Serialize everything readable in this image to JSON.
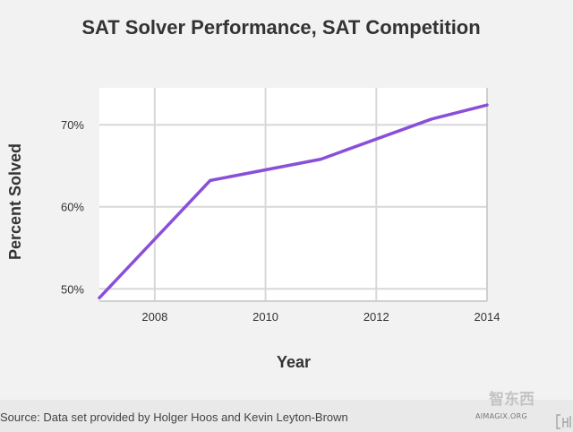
{
  "chart_data": {
    "type": "line",
    "title": "SAT Solver Performance, SAT Competition",
    "xlabel": "Year",
    "ylabel": "Percent Solved",
    "x": [
      2007,
      2009,
      2011,
      2013,
      2014
    ],
    "series": [
      {
        "values": [
          48.9,
          63.2,
          65.8,
          70.7,
          72.4
        ]
      }
    ],
    "xlim": [
      2007,
      2014
    ],
    "ylim": [
      48.5,
      74.5
    ],
    "xticks": [
      2008,
      2010,
      2012,
      2014
    ],
    "xtick_labels": [
      "2008",
      "2010",
      "2012",
      "2014"
    ],
    "yticks": [
      50,
      60,
      70
    ],
    "ytick_labels": [
      "50%",
      "60%",
      "70%"
    ],
    "grid": true,
    "line_color": "#8a4fd9",
    "grid_color": "#d8d8d8"
  },
  "footer": {
    "source": "Source: Data set provided by Holger Hoos and Kevin Leyton-Brown",
    "site": "AIMAGIX.ORG"
  },
  "watermark": {
    "text": "智东西",
    "color": "#bfbfbf"
  }
}
